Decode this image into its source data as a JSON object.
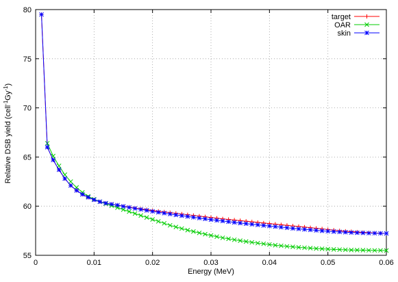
{
  "chart_data": {
    "type": "line",
    "title": "",
    "xlabel": "Energy (MeV)",
    "ylabel": {
      "base": "Relative DSB yield (cell",
      "sup1": "-1",
      "mid": "Gy",
      "sup2": "-1",
      "end": ")"
    },
    "xlim": [
      0,
      0.06
    ],
    "ylim": [
      55,
      80
    ],
    "x_ticks": [
      "0",
      "0.01",
      "0.02",
      "0.03",
      "0.04",
      "0.05",
      "0.06"
    ],
    "y_ticks": [
      "55",
      "60",
      "65",
      "70",
      "75",
      "80"
    ],
    "x_tick_values": [
      0,
      0.01,
      0.02,
      0.03,
      0.04,
      0.05,
      0.06
    ],
    "y_tick_values": [
      55,
      60,
      65,
      70,
      75,
      80
    ],
    "grid": true,
    "legend_position": "top-right",
    "series": [
      {
        "name": "target",
        "color": "#ff0000",
        "marker": "plus",
        "x": [
          0.001,
          0.002,
          0.003,
          0.004,
          0.005,
          0.006,
          0.007,
          0.008,
          0.009,
          0.01,
          0.011,
          0.012,
          0.013,
          0.014,
          0.015,
          0.016,
          0.017,
          0.018,
          0.019,
          0.02,
          0.021,
          0.022,
          0.023,
          0.024,
          0.025,
          0.026,
          0.027,
          0.028,
          0.029,
          0.03,
          0.031,
          0.032,
          0.033,
          0.034,
          0.035,
          0.036,
          0.037,
          0.038,
          0.039,
          0.04,
          0.041,
          0.042,
          0.043,
          0.044,
          0.045,
          0.046,
          0.047,
          0.048,
          0.049,
          0.05,
          0.051,
          0.052,
          0.053,
          0.054,
          0.055,
          0.056,
          0.057,
          0.058,
          0.059,
          0.06
        ],
        "y": [
          79.5,
          66.0,
          64.7,
          63.7,
          62.8,
          62.1,
          61.6,
          61.2,
          60.9,
          60.65,
          60.45,
          60.3,
          60.2,
          60.1,
          60.0,
          59.9,
          59.8,
          59.72,
          59.64,
          59.56,
          59.48,
          59.41,
          59.34,
          59.27,
          59.2,
          59.13,
          59.06,
          58.99,
          58.92,
          58.85,
          58.78,
          58.71,
          58.65,
          58.59,
          58.53,
          58.47,
          58.41,
          58.35,
          58.29,
          58.23,
          58.17,
          58.11,
          58.05,
          57.99,
          57.93,
          57.87,
          57.81,
          57.75,
          57.69,
          57.62,
          57.56,
          57.5,
          57.45,
          57.41,
          57.37,
          57.33,
          57.3,
          57.27,
          57.25,
          57.23
        ]
      },
      {
        "name": "OAR",
        "color": "#00cc00",
        "marker": "cross",
        "x": [
          0.002,
          0.003,
          0.004,
          0.005,
          0.006,
          0.007,
          0.008,
          0.009,
          0.01,
          0.011,
          0.012,
          0.013,
          0.014,
          0.015,
          0.016,
          0.017,
          0.018,
          0.019,
          0.02,
          0.021,
          0.022,
          0.023,
          0.024,
          0.025,
          0.026,
          0.027,
          0.028,
          0.029,
          0.03,
          0.031,
          0.032,
          0.033,
          0.034,
          0.035,
          0.036,
          0.037,
          0.038,
          0.039,
          0.04,
          0.041,
          0.042,
          0.043,
          0.044,
          0.045,
          0.046,
          0.047,
          0.048,
          0.049,
          0.05,
          0.051,
          0.052,
          0.053,
          0.054,
          0.055,
          0.056,
          0.057,
          0.058,
          0.059,
          0.06
        ],
        "y": [
          66.4,
          65.1,
          64.1,
          63.2,
          62.5,
          61.9,
          61.4,
          61.0,
          60.7,
          60.45,
          60.25,
          60.05,
          59.85,
          59.65,
          59.45,
          59.25,
          59.05,
          58.85,
          58.65,
          58.45,
          58.25,
          58.05,
          57.88,
          57.72,
          57.56,
          57.42,
          57.28,
          57.15,
          57.02,
          56.9,
          56.78,
          56.68,
          56.58,
          56.49,
          56.4,
          56.32,
          56.24,
          56.17,
          56.1,
          56.03,
          55.97,
          55.91,
          55.86,
          55.81,
          55.77,
          55.73,
          55.69,
          55.66,
          55.63,
          55.6,
          55.58,
          55.56,
          55.54,
          55.53,
          55.52,
          55.51,
          55.5,
          55.5,
          55.49
        ]
      },
      {
        "name": "skin",
        "color": "#0000ff",
        "marker": "star",
        "x": [
          0.001,
          0.002,
          0.003,
          0.004,
          0.005,
          0.006,
          0.007,
          0.008,
          0.009,
          0.01,
          0.011,
          0.012,
          0.013,
          0.014,
          0.015,
          0.016,
          0.017,
          0.018,
          0.019,
          0.02,
          0.021,
          0.022,
          0.023,
          0.024,
          0.025,
          0.026,
          0.027,
          0.028,
          0.029,
          0.03,
          0.031,
          0.032,
          0.033,
          0.034,
          0.035,
          0.036,
          0.037,
          0.038,
          0.039,
          0.04,
          0.041,
          0.042,
          0.043,
          0.044,
          0.045,
          0.046,
          0.047,
          0.048,
          0.049,
          0.05,
          0.051,
          0.052,
          0.053,
          0.054,
          0.055,
          0.056,
          0.057,
          0.058,
          0.059,
          0.06
        ],
        "y": [
          79.5,
          66.0,
          64.7,
          63.7,
          62.8,
          62.1,
          61.6,
          61.2,
          60.9,
          60.65,
          60.45,
          60.3,
          60.2,
          60.1,
          59.98,
          59.87,
          59.77,
          59.67,
          59.57,
          59.47,
          59.38,
          59.29,
          59.2,
          59.11,
          59.03,
          58.95,
          58.87,
          58.79,
          58.71,
          58.63,
          58.56,
          58.49,
          58.42,
          58.35,
          58.28,
          58.22,
          58.16,
          58.1,
          58.04,
          57.98,
          57.92,
          57.86,
          57.8,
          57.74,
          57.69,
          57.64,
          57.59,
          57.54,
          57.49,
          57.45,
          57.41,
          57.38,
          57.35,
          57.32,
          57.3,
          57.28,
          57.26,
          57.25,
          57.24,
          57.23
        ]
      }
    ]
  }
}
